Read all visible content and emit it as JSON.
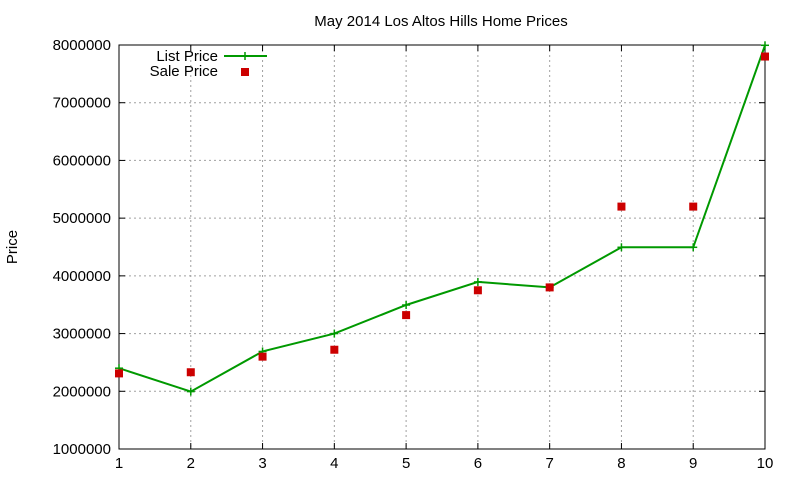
{
  "chart_data": {
    "type": "line",
    "title": "May 2014 Los Altos Hills Home Prices",
    "xlabel": "",
    "ylabel": "Price",
    "x": [
      1,
      2,
      3,
      4,
      5,
      6,
      7,
      8,
      9,
      10
    ],
    "xlim": [
      1,
      10
    ],
    "ylim": [
      1000000,
      8000000
    ],
    "yticks": [
      1000000,
      2000000,
      3000000,
      4000000,
      5000000,
      6000000,
      7000000,
      8000000
    ],
    "grid": true,
    "legend_position": "top-left",
    "series": [
      {
        "name": "List Price",
        "style": "line-with-plus-markers",
        "color": "#009900",
        "values": [
          2400000,
          1995000,
          2690000,
          3000000,
          3495000,
          3895000,
          3800000,
          4495000,
          4495000,
          7995000
        ]
      },
      {
        "name": "Sale Price",
        "style": "square-markers",
        "color": "#cc0000",
        "values": [
          2310000,
          2330000,
          2600000,
          2720000,
          3320000,
          3750000,
          3800000,
          5200000,
          5200000,
          7800000
        ]
      }
    ]
  }
}
